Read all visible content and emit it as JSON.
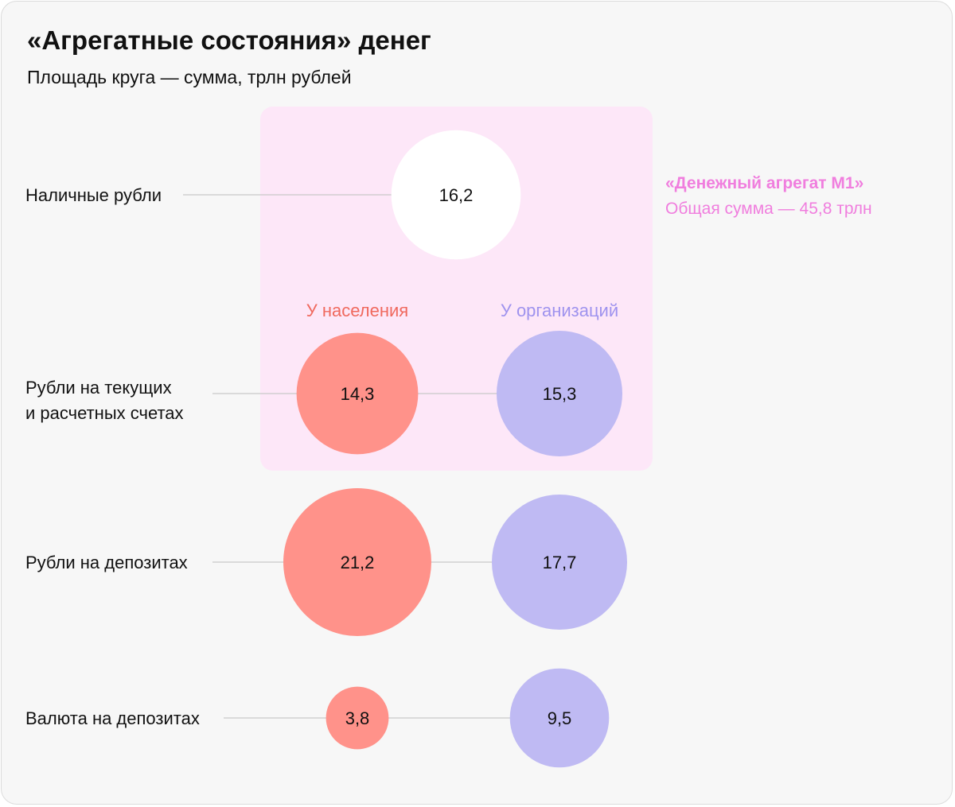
{
  "title": "«Агрегатные состояния» денег",
  "subtitle": "Площадь круга — сумма, трлн рублей",
  "colors": {
    "background": "#f7f7f7",
    "population": "#ff928a",
    "organizations": "#bfbaf3",
    "cash": "#ffffff",
    "m1_box": "#fde7f8",
    "m1_text": "#f07ede",
    "population_label": "#f0695e",
    "organizations_label": "#9f93ee",
    "connector": "#c8c8c8"
  },
  "m1": {
    "name": "«Денежный агрегат М1»",
    "total_label": "Общая сумма — 45,8 трлн"
  },
  "chart_data": {
    "type": "bubble",
    "title": "«Агрегатные состояния» денег",
    "subtitle": "Площадь круга — сумма, трлн рублей",
    "unit": "трлн рублей",
    "columns": [
      "У населения",
      "У организаций"
    ],
    "rows": [
      {
        "label_lines": [
          "Наличные рубли"
        ],
        "cash": 16.2,
        "cash_text": "16,2"
      },
      {
        "label_lines": [
          "Рубли на текущих",
          "и расчетных счетах"
        ],
        "population": 14.3,
        "population_text": "14,3",
        "organizations": 15.3,
        "organizations_text": "15,3"
      },
      {
        "label_lines": [
          "Рубли на депозитах"
        ],
        "population": 21.2,
        "population_text": "21,2",
        "organizations": 17.7,
        "organizations_text": "17,7"
      },
      {
        "label_lines": [
          "Валюта на депозитах"
        ],
        "population": 3.8,
        "population_text": "3,8",
        "organizations": 9.5,
        "organizations_text": "9,5"
      }
    ]
  }
}
